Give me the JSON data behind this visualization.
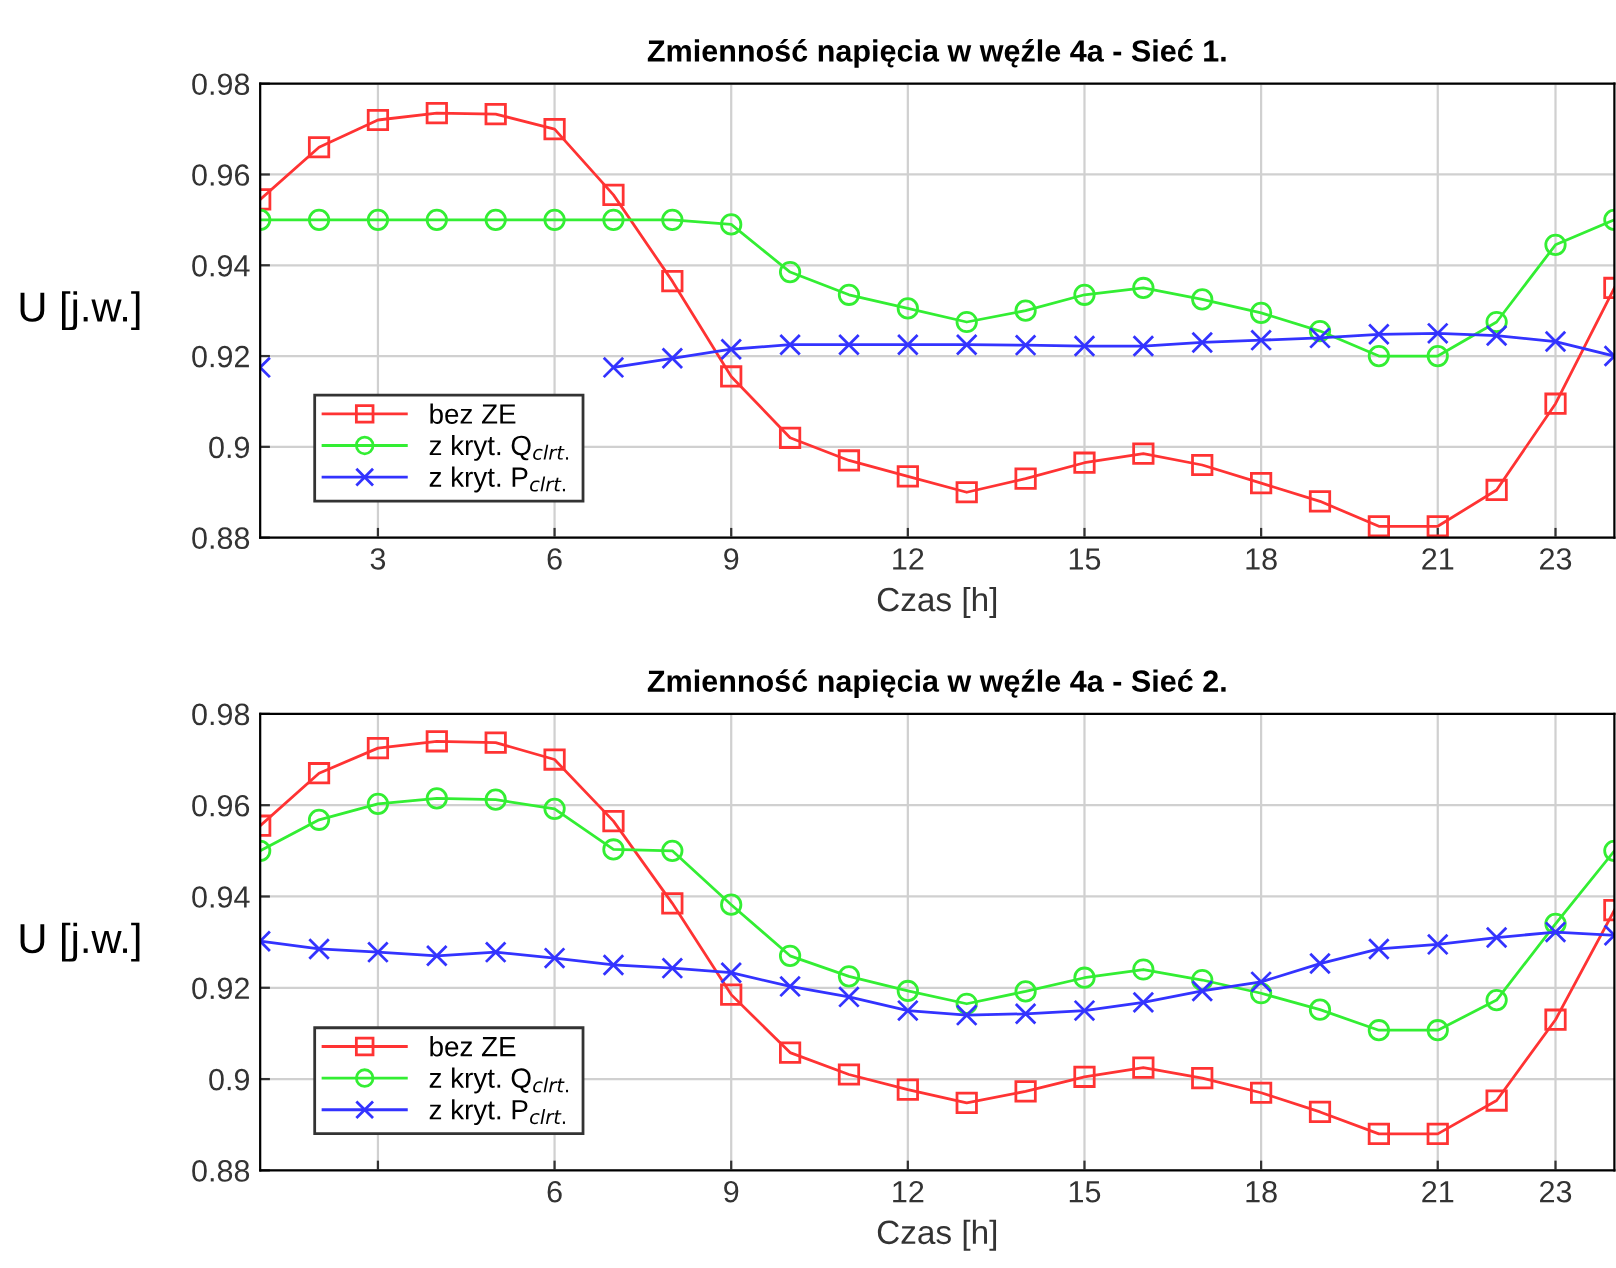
{
  "chart_data": [
    {
      "type": "line",
      "title": "Zmienność napięcia w węźle 4a - Sieć 1.",
      "xlabel": "Czas [h]",
      "ylabel": "U [j.w.]",
      "x": [
        1,
        2,
        3,
        4,
        5,
        6,
        7,
        8,
        9,
        10,
        11,
        12,
        13,
        14,
        15,
        16,
        17,
        18,
        19,
        20,
        21,
        22,
        23,
        24
      ],
      "xlim": [
        1,
        24
      ],
      "xticks": [
        3,
        6,
        9,
        12,
        15,
        18,
        21,
        23
      ],
      "ylim": [
        0.88,
        0.98
      ],
      "yticks": [
        0.88,
        0.9,
        0.92,
        0.94,
        0.96,
        0.98
      ],
      "grid": true,
      "legend": "left",
      "series": [
        {
          "name": "bez ZE",
          "color": "#ff3333",
          "marker": "square",
          "values": [
            0.9545,
            0.966,
            0.972,
            0.9735,
            0.9733,
            0.97,
            0.9555,
            0.9365,
            0.9155,
            0.902,
            0.897,
            0.8935,
            0.89,
            0.893,
            0.8965,
            0.8985,
            0.896,
            0.892,
            0.888,
            0.8825,
            0.8825,
            0.8905,
            0.9095,
            0.935
          ]
        },
        {
          "name": "z kryt. Q$_{clrt.}$",
          "color": "#33ee33",
          "marker": "circle",
          "values": [
            0.95,
            0.95,
            0.95,
            0.95,
            0.95,
            0.95,
            0.95,
            0.95,
            0.949,
            0.9385,
            0.9335,
            0.9305,
            0.9275,
            0.93,
            0.9335,
            0.935,
            0.9325,
            0.9295,
            0.9255,
            0.92,
            0.92,
            0.9275,
            0.9445,
            0.95
          ]
        },
        {
          "name": "z kryt. P$_{clrt.}$",
          "color": "#3333ff",
          "marker": "cross",
          "values": [
            0.9175,
            null,
            null,
            null,
            null,
            null,
            0.9175,
            0.9195,
            0.9215,
            0.9225,
            0.9225,
            0.9225,
            0.9225,
            0.9224,
            0.9222,
            0.9222,
            0.923,
            0.9235,
            0.924,
            0.9248,
            0.925,
            0.9245,
            0.9232,
            0.92
          ]
        }
      ]
    },
    {
      "type": "line",
      "title": "Zmienność napięcia w węźle 4a - Sieć 2.",
      "xlabel": "Czas [h]",
      "ylabel": "U [j.w.]",
      "x": [
        1,
        2,
        3,
        4,
        5,
        6,
        7,
        8,
        9,
        10,
        11,
        12,
        13,
        14,
        15,
        16,
        17,
        18,
        19,
        20,
        21,
        22,
        23,
        24
      ],
      "xlim": [
        1,
        24
      ],
      "xticks": [
        {
          "value": 3,
          "label": null
        },
        6,
        9,
        12,
        15,
        18,
        21,
        23
      ],
      "ylim": [
        0.88,
        0.98
      ],
      "yticks": [
        0.88,
        0.9,
        0.92,
        0.94,
        0.96,
        0.98
      ],
      "grid": true,
      "legend": "left",
      "series": [
        {
          "name": "bez ZE",
          "color": "#ff3333",
          "marker": "square",
          "values": [
            0.9555,
            0.967,
            0.9725,
            0.974,
            0.9737,
            0.97,
            0.9565,
            0.9385,
            0.9185,
            0.9058,
            0.901,
            0.8977,
            0.8948,
            0.8973,
            0.9005,
            0.9025,
            0.9002,
            0.897,
            0.8928,
            0.888,
            0.888,
            0.8953,
            0.913,
            0.937
          ]
        },
        {
          "name": "z kryt. Q$_{clrt.}$",
          "color": "#33ee33",
          "marker": "circle",
          "values": [
            0.95,
            0.9568,
            0.9603,
            0.9615,
            0.9612,
            0.9592,
            0.9503,
            0.95,
            0.9382,
            0.927,
            0.9225,
            0.9193,
            0.9165,
            0.9192,
            0.9222,
            0.924,
            0.9217,
            0.9188,
            0.9152,
            0.9107,
            0.9107,
            0.9173,
            0.934,
            0.95
          ]
        },
        {
          "name": "z kryt. P$_{clrt.}$",
          "color": "#3333ff",
          "marker": "cross",
          "values": [
            0.9302,
            0.9285,
            0.9278,
            0.927,
            0.9278,
            0.9265,
            0.925,
            0.9243,
            0.9233,
            0.9203,
            0.918,
            0.915,
            0.914,
            0.9143,
            0.915,
            0.9168,
            0.9193,
            0.9213,
            0.9253,
            0.9285,
            0.9295,
            0.931,
            0.9322,
            0.9315
          ]
        }
      ]
    }
  ]
}
